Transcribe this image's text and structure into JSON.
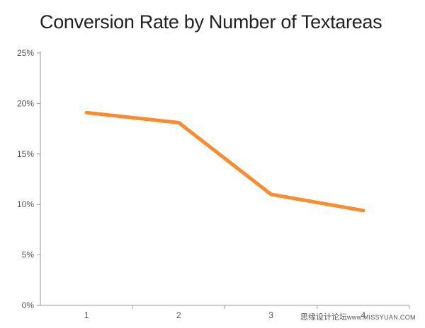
{
  "chart_data": {
    "type": "line",
    "title": "Conversion Rate by Number of Textareas",
    "xlabel": "",
    "ylabel": "",
    "categories": [
      "1",
      "2",
      "3",
      "4"
    ],
    "values": [
      19.1,
      18.1,
      11.0,
      9.4
    ],
    "ylim": [
      0,
      25
    ],
    "yticks": [
      0,
      5,
      10,
      15,
      20,
      25
    ],
    "ytick_labels": [
      "0%",
      "5%",
      "10%",
      "15%",
      "20%",
      "25%"
    ],
    "grid": false,
    "legend": "none",
    "line_color": "#FF8A2B",
    "axis_color": "#999999"
  },
  "watermark": {
    "text_cn": "思缘设计论坛",
    "url": "www.MISSYUAN.COM"
  }
}
